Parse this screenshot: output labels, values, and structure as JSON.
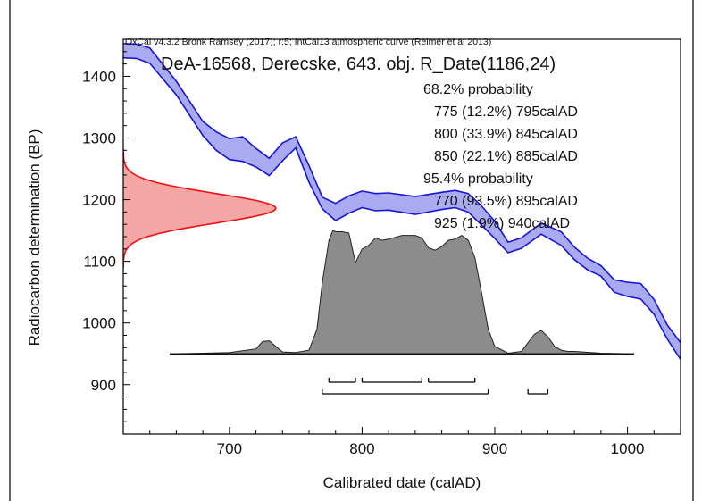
{
  "chart_data": {
    "type": "area",
    "software_note": "OxCal v4.3.2 Bronk Ramsey (2017); r:5; IntCal13 atmospheric curve (Reimer et al 2013)",
    "title": "DeA-16568, Derecske, 643. obj. R_Date(1186,24)",
    "xlabel": "Calibrated date (calAD)",
    "ylabel": "Radiocarbon determination (BP)",
    "xlim": [
      620,
      1040
    ],
    "ylim": [
      820,
      1460
    ],
    "x_ticks": [
      700,
      800,
      900,
      1000
    ],
    "y_ticks": [
      900,
      1000,
      1100,
      1200,
      1300,
      1400
    ],
    "colors": {
      "curve_fill": "#aaaaf0",
      "curve_line": "#1515d8",
      "measurement_fill": "#f7a6a6",
      "measurement_line": "#ee1111",
      "posterior_fill": "#8c8c8c",
      "posterior_line": "#222222"
    },
    "probability_text": [
      "68.2% probability",
      "775 (12.2%) 795calAD",
      "800 (33.9%) 845calAD",
      "850 (22.1%) 885calAD",
      "95.4% probability",
      "770 (93.5%) 895calAD",
      "925 (1.9%) 940calAD"
    ],
    "calibration_curve": {
      "x": [
        620,
        630,
        640,
        660,
        680,
        690,
        700,
        710,
        720,
        730,
        740,
        750,
        760,
        770,
        780,
        790,
        800,
        810,
        820,
        840,
        860,
        870,
        880,
        890,
        900,
        910,
        920,
        935,
        950,
        960,
        970,
        980,
        990,
        1000,
        1010,
        1020,
        1030,
        1040
      ],
      "upper": [
        1453,
        1452,
        1446,
        1392,
        1327,
        1310,
        1299,
        1302,
        1283,
        1267,
        1292,
        1302,
        1255,
        1204,
        1194,
        1206,
        1214,
        1210,
        1211,
        1205,
        1212,
        1215,
        1210,
        1190,
        1165,
        1131,
        1138,
        1162,
        1148,
        1123,
        1105,
        1093,
        1070,
        1066,
        1064,
        1038,
        997,
        968
      ],
      "lower": [
        1430,
        1429,
        1421,
        1370,
        1304,
        1280,
        1265,
        1262,
        1253,
        1239,
        1263,
        1284,
        1228,
        1185,
        1166,
        1178,
        1187,
        1182,
        1183,
        1176,
        1184,
        1187,
        1180,
        1159,
        1137,
        1114,
        1121,
        1144,
        1126,
        1103,
        1086,
        1076,
        1050,
        1043,
        1039,
        1014,
        974,
        941
      ]
    },
    "measurement": {
      "mean": 1186,
      "sigma": 24,
      "max_width_calyr": 115
    },
    "posterior": {
      "baseline_y": 950,
      "max_height_bp": 200,
      "max_density": 1.0,
      "x": [
        655,
        680,
        700,
        720,
        725,
        730,
        735,
        740,
        750,
        760,
        766,
        770,
        775,
        778,
        780,
        785,
        790,
        795,
        800,
        805,
        810,
        815,
        820,
        830,
        840,
        845,
        850,
        855,
        860,
        865,
        870,
        875,
        880,
        885,
        890,
        895,
        900,
        910,
        920,
        925,
        930,
        935,
        940,
        945,
        950,
        955,
        960,
        980,
        1005
      ],
      "density": [
        0.0,
        0.005,
        0.01,
        0.04,
        0.1,
        0.105,
        0.06,
        0.015,
        0.01,
        0.03,
        0.2,
        0.58,
        0.92,
        1.0,
        0.99,
        0.99,
        0.98,
        0.74,
        0.85,
        0.88,
        0.94,
        0.92,
        0.93,
        0.96,
        0.96,
        0.94,
        0.86,
        0.84,
        0.87,
        0.92,
        0.93,
        0.96,
        0.92,
        0.78,
        0.5,
        0.2,
        0.06,
        0.005,
        0.02,
        0.09,
        0.16,
        0.19,
        0.14,
        0.06,
        0.03,
        0.02,
        0.02,
        0.005,
        0.0
      ]
    },
    "range_68": [
      [
        775,
        795
      ],
      [
        800,
        845
      ],
      [
        850,
        885
      ]
    ],
    "range_95": [
      [
        770,
        895
      ],
      [
        925,
        940
      ]
    ]
  }
}
